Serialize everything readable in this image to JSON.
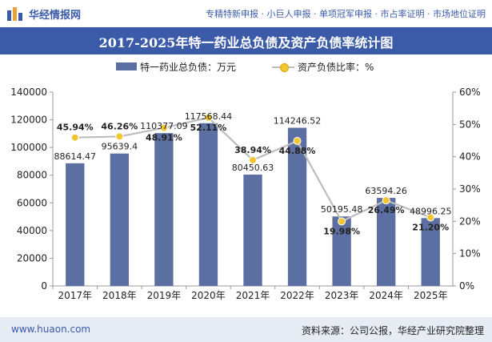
{
  "header": {
    "brand": "华经情报网",
    "tags": "专精特新申报 · 小巨人申报 · 单项冠军申报 · 市占率证明 · 市场地位证明"
  },
  "title": "2017-2025年特一药业总负债及资产负债率统计图",
  "legend": {
    "bar_label": "特一药业总负债：万元",
    "line_label": "资产负债比率：%"
  },
  "footer": {
    "site": "www.huaon.com",
    "source": "资料来源：公司公报，华经产业研究院整理"
  },
  "colors": {
    "bar": "#5b6fa2",
    "line": "#bdbdbd",
    "marker": "#f2c531",
    "title_bg": "#3b5ba9"
  },
  "chart_data": {
    "type": "bar",
    "categories": [
      "2017年",
      "2018年",
      "2019年",
      "2020年",
      "2021年",
      "2022年",
      "2023年",
      "2024年",
      "2025年"
    ],
    "series": [
      {
        "name": "特一药业总负债：万元",
        "type": "bar",
        "axis": "left",
        "values": [
          88614.47,
          95639.4,
          110377.09,
          117568.44,
          80450.63,
          114246.52,
          50195.48,
          63594.26,
          48996.25
        ],
        "labels": [
          "88614.47",
          "95639.4",
          "110377.09",
          "117568.44",
          "80450.63",
          "114246.52",
          "50195.48",
          "63594.26",
          "48996.25"
        ]
      },
      {
        "name": "资产负债比率：%",
        "type": "line",
        "axis": "right",
        "values": [
          45.94,
          46.26,
          48.91,
          52.11,
          38.94,
          44.88,
          19.98,
          26.49,
          21.2
        ],
        "labels": [
          "45.94%",
          "46.26%",
          "48.91%",
          "52.11%",
          "38.94%",
          "44.88%",
          "19.98%",
          "26.49%",
          "21.20%"
        ]
      }
    ],
    "y_left": {
      "min": 0,
      "max": 140000,
      "ticks": [
        0,
        20000,
        40000,
        60000,
        80000,
        100000,
        120000,
        140000
      ]
    },
    "y_right": {
      "min": 0,
      "max": 60,
      "ticks": [
        "0%",
        "10%",
        "20%",
        "30%",
        "40%",
        "50%",
        "60%"
      ]
    },
    "grid": false,
    "legend_position": "top"
  }
}
